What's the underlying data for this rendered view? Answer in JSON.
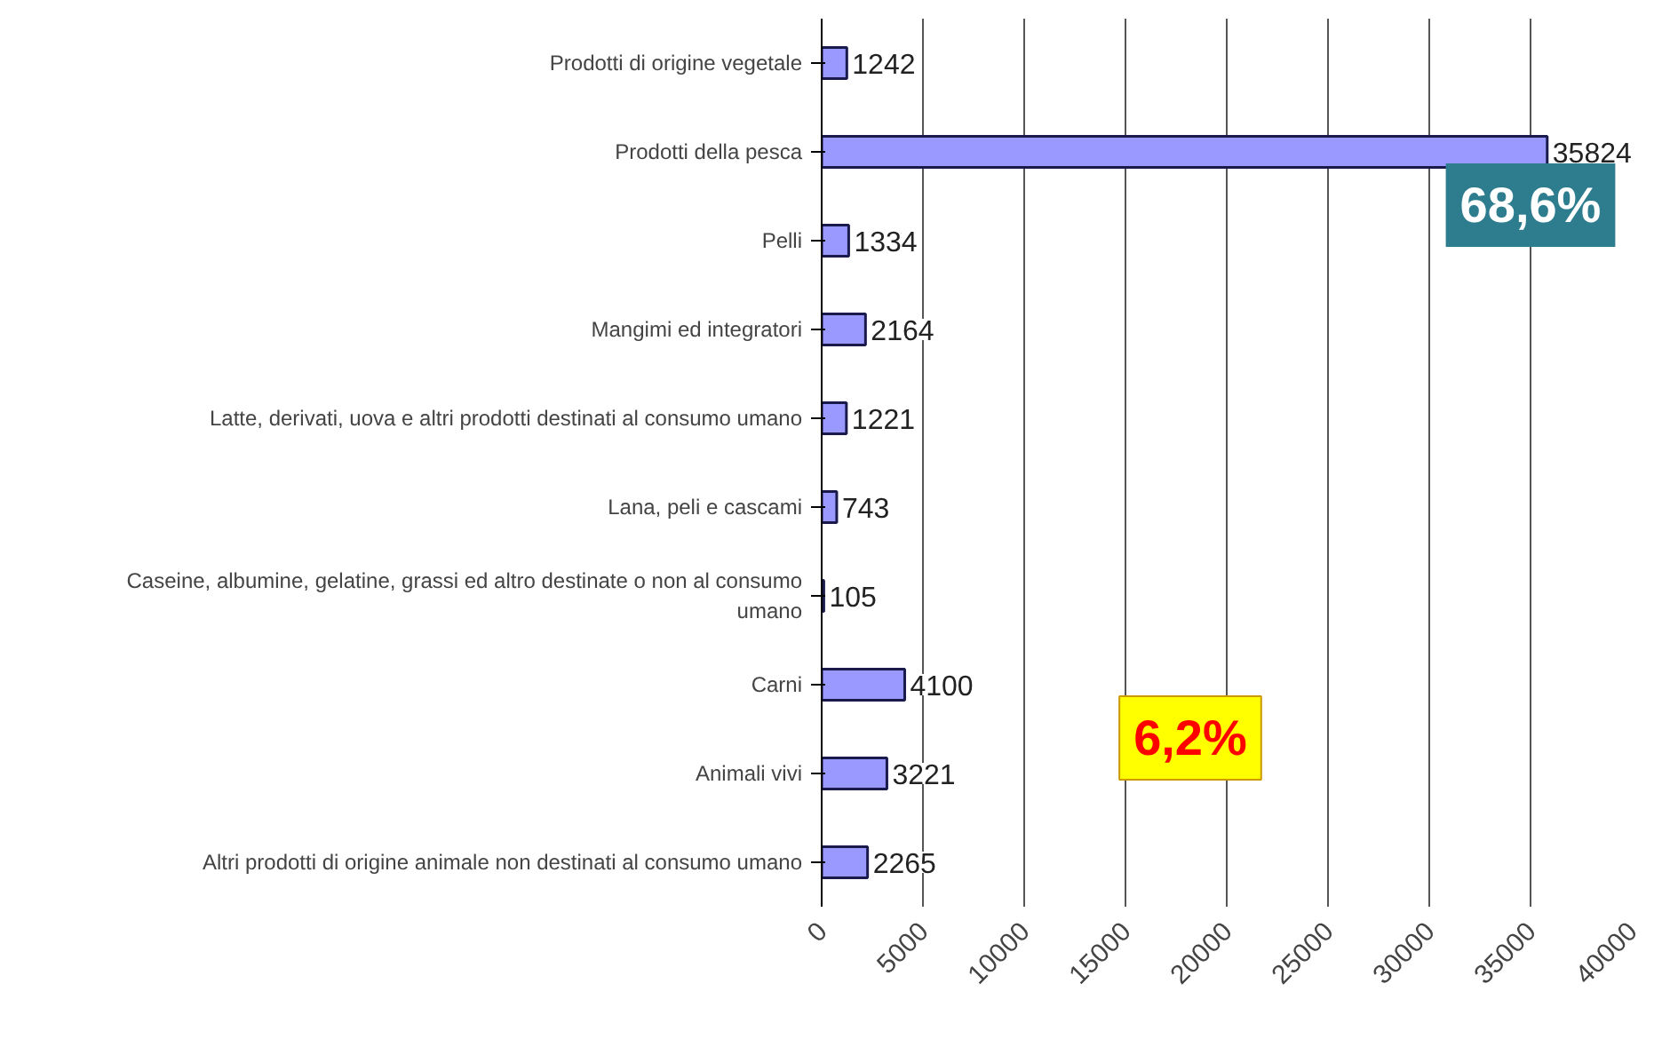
{
  "chart_data": {
    "type": "bar",
    "orientation": "horizontal",
    "categories": [
      "Prodotti di origine vegetale",
      "Prodotti della pesca",
      "Pelli",
      "Mangimi ed integratori",
      "Latte, derivati, uova e altri prodotti destinati al consumo umano",
      "Lana, peli e cascami",
      "Caseine, albumine, gelatine, grassi ed altro destinate o non al consumo umano",
      "Carni",
      "Animali vivi",
      "Altri prodotti di origine animale non destinati al consumo umano"
    ],
    "values": [
      1242,
      35824,
      1334,
      2164,
      1221,
      743,
      105,
      4100,
      3221,
      2265
    ],
    "color": "#9999ff",
    "data_labels": true,
    "xlim": [
      0,
      40000
    ],
    "xticks": [
      0,
      5000,
      10000,
      15000,
      20000,
      25000,
      30000,
      35000,
      40000
    ],
    "grid": "x",
    "annotations": [
      "68,6%",
      "6,2%"
    ]
  }
}
